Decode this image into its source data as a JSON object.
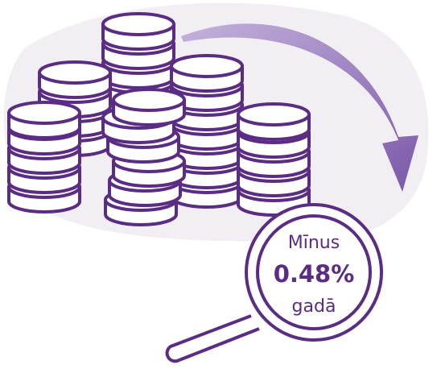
{
  "badge": {
    "line1": "Mīnus",
    "rate": "0.48%",
    "line3": "gadā"
  }
}
